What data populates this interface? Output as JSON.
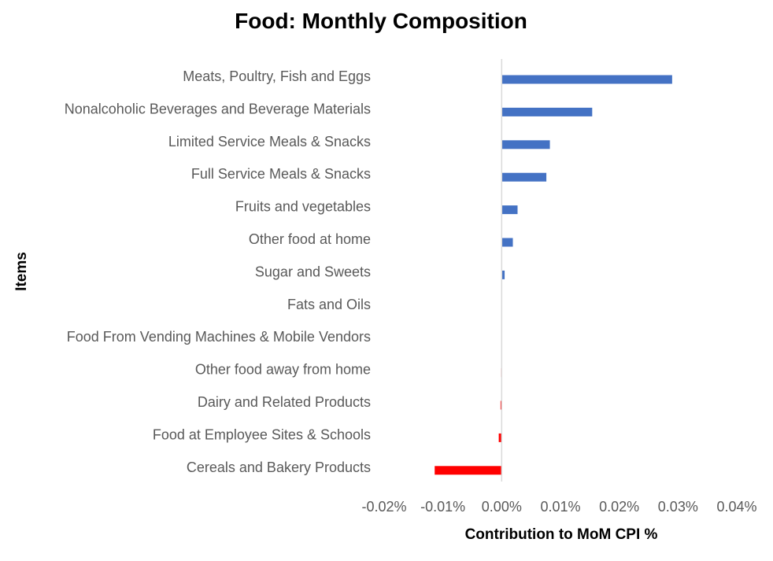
{
  "chart_data": {
    "type": "bar",
    "orientation": "horizontal",
    "title": "Food: Monthly Composition",
    "xlabel": "Contribution to MoM CPI %",
    "ylabel": "Items",
    "xlim": [
      -0.02,
      0.04
    ],
    "x_ticks": [
      "-0.02%",
      "-0.01%",
      "0.00%",
      "0.01%",
      "0.02%",
      "0.03%",
      "0.04%"
    ],
    "grid": false,
    "legend": "none",
    "categories": [
      "Meats, Poultry, Fish and Eggs",
      "Nonalcoholic Beverages and Beverage Materials",
      "Limited Service Meals & Snacks",
      "Full Service Meals & Snacks",
      "Fruits and vegetables",
      "Other food at home",
      "Sugar and Sweets",
      "Fats and Oils",
      "Food From Vending Machines & Mobile Vendors",
      "Other food away from home",
      "Dairy and Related Products",
      "Food at Employee Sites & Schools",
      "Cereals and Bakery Products"
    ],
    "values": [
      0.029,
      0.0154,
      0.0082,
      0.0076,
      0.0027,
      0.0019,
      0.0005,
      0.0,
      0.0,
      -0.0001,
      -0.0002,
      -0.0005,
      -0.0114
    ],
    "colors": {
      "positive": "#4472C4",
      "negative": "#FF0000",
      "axis_line": "#D9D9D9"
    }
  }
}
